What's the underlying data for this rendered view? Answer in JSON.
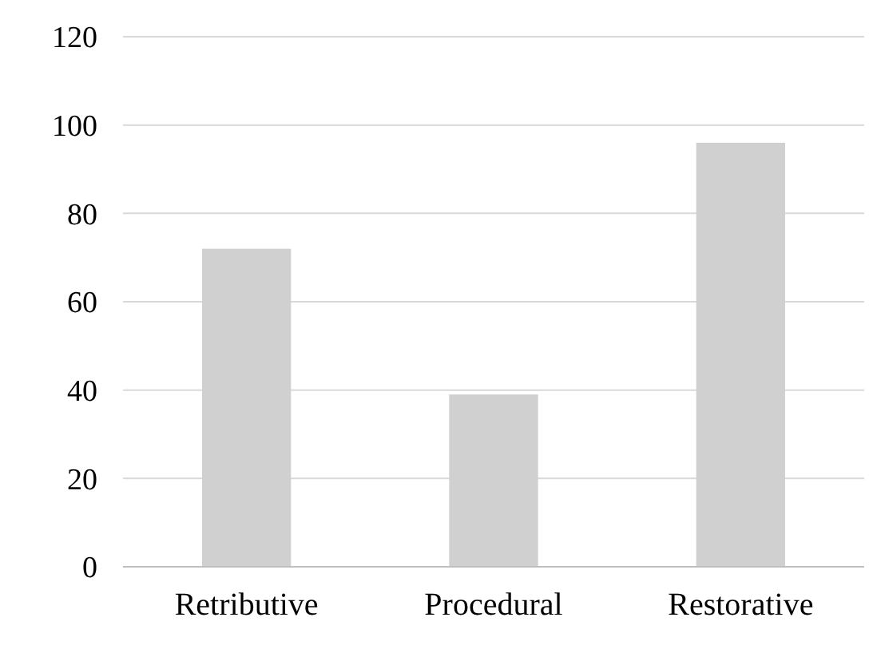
{
  "chart_data": {
    "type": "bar",
    "categories": [
      "Retributive",
      "Procedural",
      "Restorative"
    ],
    "values": [
      72,
      39,
      96
    ],
    "color": "#d0d0d0",
    "ylim": [
      0,
      120
    ],
    "yticks": [
      0,
      20,
      40,
      60,
      80,
      100,
      120
    ],
    "grid": "y"
  }
}
